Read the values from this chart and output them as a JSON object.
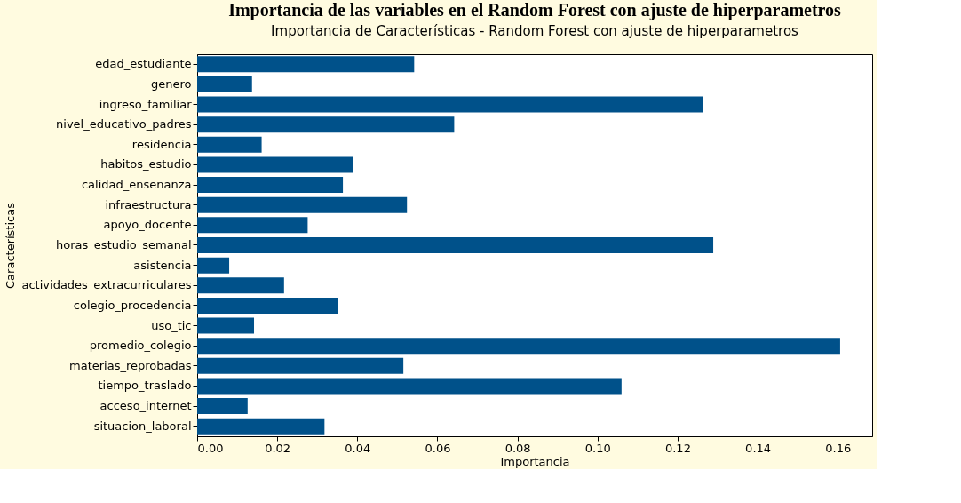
{
  "chart_data": {
    "type": "bar",
    "orientation": "horizontal",
    "title": "Importancia de las variables en el Random Forest con ajuste de hiperparametros",
    "subtitle": "Importancia de Características - Random Forest con ajuste de hiperparametros",
    "xlabel": "Importancia",
    "ylabel": "Características",
    "categories": [
      "edad_estudiante",
      "genero",
      "ingreso_familiar",
      "nivel_educativo_padres",
      "residencia",
      "habitos_estudio",
      "calidad_ensenanza",
      "infraestructura",
      "apoyo_docente",
      "horas_estudio_semanal",
      "asistencia",
      "actividades_extracurriculares",
      "colegio_procedencia",
      "uso_tic",
      "promedio_colegio",
      "materias_reprobadas",
      "tiempo_traslado",
      "acceso_internet",
      "situacion_laboral"
    ],
    "values": [
      0.0542,
      0.0137,
      0.1263,
      0.0642,
      0.0161,
      0.039,
      0.0364,
      0.0524,
      0.0276,
      0.1289,
      0.008,
      0.0217,
      0.0351,
      0.0142,
      0.1606,
      0.0515,
      0.106,
      0.0126,
      0.0318
    ],
    "color": "#00518a",
    "xlim": [
      0,
      0.1686
    ],
    "xticks": [
      {
        "value": 0,
        "label": "0.00"
      },
      {
        "value": 0.02,
        "label": "0.02"
      },
      {
        "value": 0.04,
        "label": "0.04"
      },
      {
        "value": 0.06,
        "label": "0.06"
      },
      {
        "value": 0.08,
        "label": "0.08"
      },
      {
        "value": 0.1,
        "label": "0.10"
      },
      {
        "value": 0.12,
        "label": "0.12"
      },
      {
        "value": 0.14,
        "label": "0.14"
      },
      {
        "value": 0.16,
        "label": "0.16"
      }
    ],
    "grid": false
  }
}
